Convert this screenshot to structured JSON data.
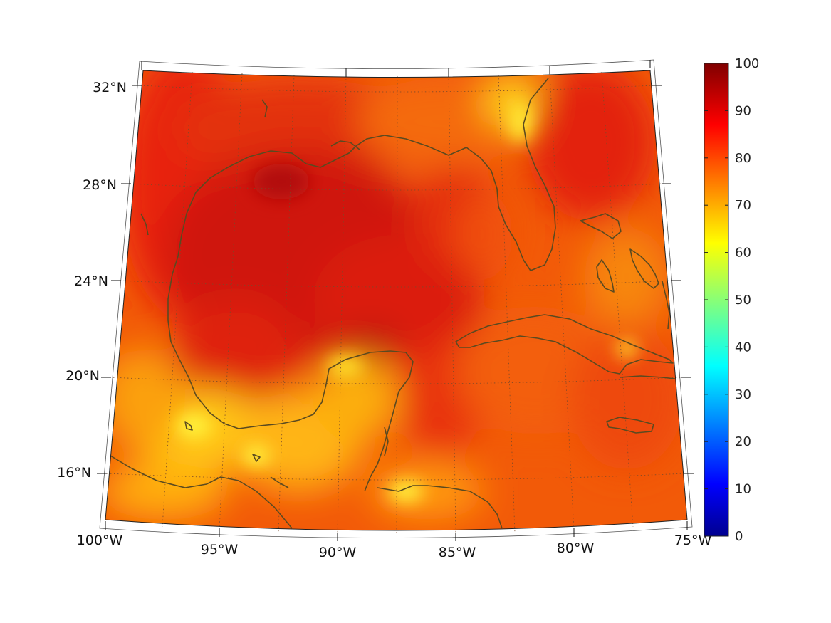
{
  "map": {
    "projection": "conic",
    "lon_range": [
      -100,
      -75
    ],
    "lat_range": [
      14,
      33
    ],
    "lat_ticks": [
      "32°N",
      "28°N",
      "24°N",
      "20°N",
      "16°N"
    ],
    "lon_ticks": [
      "100°W",
      "95°W",
      "90°W",
      "85°W",
      "80°W",
      "75°W"
    ],
    "grid": "dotted",
    "coastline_color": "#5a4a20"
  },
  "colorbar": {
    "colormap": "jet",
    "min": 0,
    "max": 100,
    "ticks": [
      "100",
      "90",
      "80",
      "70",
      "60",
      "50",
      "40",
      "30",
      "20",
      "10",
      "0"
    ],
    "placement": "right"
  },
  "colors": {
    "high": "#e21b10",
    "very_high": "#c2120c",
    "mid": "#ff7e00",
    "low": "#ffd400"
  }
}
